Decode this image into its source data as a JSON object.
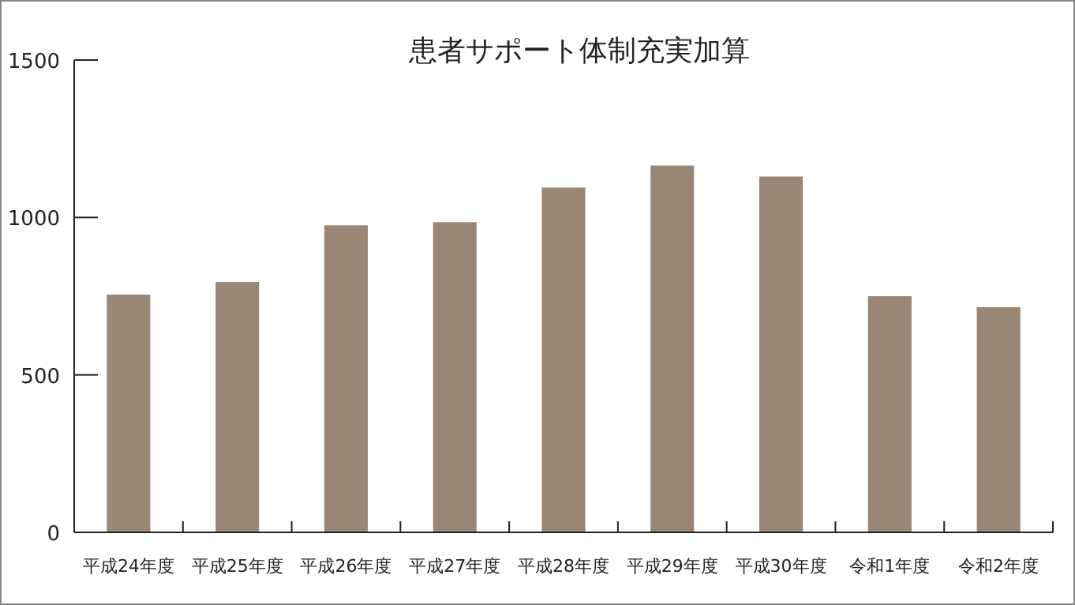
{
  "chart_data": {
    "type": "bar",
    "title": "患者サポート体制充実加算",
    "categories": [
      "平成24年度",
      "平成25年度",
      "平成26年度",
      "平成27年度",
      "平成28年度",
      "平成29年度",
      "平成30年度",
      "令和1年度",
      "令和2年度"
    ],
    "values": [
      755,
      795,
      975,
      985,
      1095,
      1165,
      1130,
      750,
      715
    ],
    "color": "#9a8674",
    "ylim": [
      0,
      1500
    ],
    "yticks": [
      0,
      500,
      1000,
      1500
    ],
    "grid": false
  }
}
